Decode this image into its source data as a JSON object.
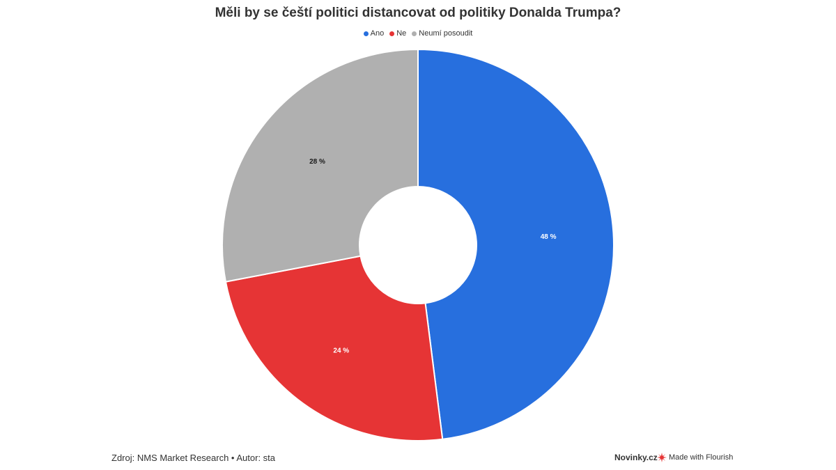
{
  "chart_data": {
    "type": "pie",
    "donut": true,
    "title": "Měli by se čeští politici distancovat od politiky Donalda Trumpa?",
    "legend_position": "top-center",
    "categories": [
      "Ano",
      "Ne",
      "Neumí posoudit"
    ],
    "values": [
      48,
      24,
      28
    ],
    "value_labels": [
      "48 %",
      "24 %",
      "28 %"
    ],
    "colors": [
      "#276fde",
      "#e63435",
      "#b0b0b0"
    ],
    "label_colors": [
      "#ffffff",
      "#ffffff",
      "#1a1a1a"
    ]
  },
  "footer": {
    "source": "Zdroj: NMS Market Research • Autor: sta",
    "brand": "Novinky.cz",
    "flourish": "Made with Flourish"
  },
  "icons": {
    "flourish": "flourish-logo-icon"
  }
}
